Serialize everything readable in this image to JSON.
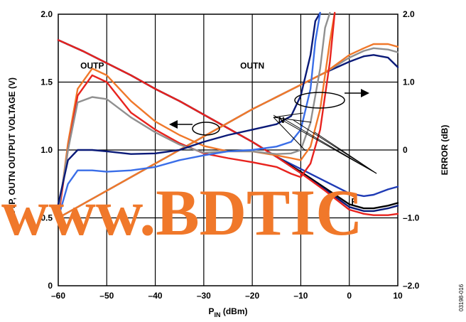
{
  "chart_data": {
    "type": "line",
    "title": "",
    "xlabel_main": "P",
    "xlabel_sub": "IN",
    "xlabel_unit": " (dBm)",
    "ylabel": "OUTP, OUTN OUTPUT VOLTAGE (V)",
    "y2label": "ERROR (dB)",
    "xlim": [
      -60,
      10
    ],
    "ylim": [
      0,
      2
    ],
    "y2lim": [
      -2,
      2
    ],
    "grid": true,
    "x_ticks": [
      -60,
      -50,
      -40,
      -30,
      -20,
      -10,
      0,
      10
    ],
    "x_tick_labels": [
      "–60",
      "–50",
      "–40",
      "–30",
      "–20",
      "–10",
      "0",
      "10"
    ],
    "y_ticks": [
      0,
      0.5,
      1.0,
      1.5,
      2.0
    ],
    "y_tick_labels": [
      "0",
      "0.5",
      "1.0",
      "1.5",
      "2.0"
    ],
    "y2_ticks": [
      -2,
      -1,
      0,
      1,
      2
    ],
    "y2_tick_labels": [
      "–2.0",
      "–1.0",
      "0",
      "1.0",
      "2.0"
    ],
    "series": [
      {
        "group": "OUTP",
        "axis": "left",
        "color": "#1f3bb5",
        "points": [
          [
            -60,
            1.81
          ],
          [
            -55,
            1.73
          ],
          [
            -50,
            1.64
          ],
          [
            -45,
            1.55
          ],
          [
            -40,
            1.45
          ],
          [
            -35,
            1.36
          ],
          [
            -30,
            1.26
          ],
          [
            -25,
            1.16
          ],
          [
            -20,
            1.06
          ],
          [
            -15,
            0.95
          ],
          [
            -10,
            0.86
          ],
          [
            -5,
            0.77
          ],
          [
            0,
            0.68
          ],
          [
            3,
            0.66
          ],
          [
            5,
            0.67
          ],
          [
            8,
            0.71
          ],
          [
            10,
            0.73
          ]
        ]
      },
      {
        "group": "OUTP",
        "axis": "left",
        "color": "#000000",
        "points": [
          [
            -60,
            1.81
          ],
          [
            -55,
            1.73
          ],
          [
            -50,
            1.64
          ],
          [
            -45,
            1.55
          ],
          [
            -40,
            1.45
          ],
          [
            -35,
            1.36
          ],
          [
            -30,
            1.26
          ],
          [
            -25,
            1.16
          ],
          [
            -20,
            1.06
          ],
          [
            -15,
            0.95
          ],
          [
            -10,
            0.84
          ],
          [
            -5,
            0.72
          ],
          [
            0,
            0.6
          ],
          [
            3,
            0.57
          ],
          [
            5,
            0.57
          ],
          [
            8,
            0.59
          ],
          [
            10,
            0.61
          ]
        ]
      },
      {
        "group": "OUTP",
        "axis": "left",
        "color": "#0a1a78",
        "points": [
          [
            -60,
            1.81
          ],
          [
            -55,
            1.73
          ],
          [
            -50,
            1.64
          ],
          [
            -45,
            1.55
          ],
          [
            -40,
            1.45
          ],
          [
            -35,
            1.36
          ],
          [
            -30,
            1.26
          ],
          [
            -25,
            1.16
          ],
          [
            -20,
            1.06
          ],
          [
            -15,
            0.95
          ],
          [
            -10,
            0.83
          ],
          [
            -5,
            0.71
          ],
          [
            0,
            0.58
          ],
          [
            3,
            0.55
          ],
          [
            5,
            0.55
          ],
          [
            8,
            0.57
          ],
          [
            10,
            0.59
          ]
        ]
      },
      {
        "group": "OUTP",
        "axis": "left",
        "color": "#e8231e",
        "points": [
          [
            -60,
            1.81
          ],
          [
            -55,
            1.73
          ],
          [
            -50,
            1.64
          ],
          [
            -45,
            1.55
          ],
          [
            -40,
            1.45
          ],
          [
            -35,
            1.36
          ],
          [
            -30,
            1.26
          ],
          [
            -25,
            1.16
          ],
          [
            -20,
            1.06
          ],
          [
            -15,
            0.95
          ],
          [
            -10,
            0.83
          ],
          [
            -5,
            0.7
          ],
          [
            0,
            0.56
          ],
          [
            3,
            0.53
          ],
          [
            5,
            0.52
          ],
          [
            8,
            0.52
          ],
          [
            10,
            0.53
          ]
        ]
      },
      {
        "group": "OUTN",
        "axis": "left",
        "color": "#0a1a78",
        "points": [
          [
            -60,
            0.5
          ],
          [
            -55,
            0.6
          ],
          [
            -50,
            0.7
          ],
          [
            -45,
            0.8
          ],
          [
            -40,
            0.9
          ],
          [
            -35,
            1.0
          ],
          [
            -30,
            1.1
          ],
          [
            -25,
            1.2
          ],
          [
            -20,
            1.3
          ],
          [
            -15,
            1.39
          ],
          [
            -10,
            1.48
          ],
          [
            -5,
            1.57
          ],
          [
            0,
            1.65
          ],
          [
            3,
            1.69
          ],
          [
            5,
            1.7
          ],
          [
            8,
            1.68
          ],
          [
            10,
            1.61
          ]
        ]
      },
      {
        "group": "OUTN",
        "axis": "left",
        "color": "#909090",
        "points": [
          [
            -60,
            0.5
          ],
          [
            -55,
            0.6
          ],
          [
            -50,
            0.7
          ],
          [
            -45,
            0.8
          ],
          [
            -40,
            0.9
          ],
          [
            -35,
            1.0
          ],
          [
            -30,
            1.1
          ],
          [
            -25,
            1.2
          ],
          [
            -20,
            1.3
          ],
          [
            -15,
            1.39
          ],
          [
            -10,
            1.48
          ],
          [
            -5,
            1.57
          ],
          [
            0,
            1.68
          ],
          [
            3,
            1.73
          ],
          [
            5,
            1.75
          ],
          [
            8,
            1.74
          ],
          [
            10,
            1.72
          ]
        ]
      },
      {
        "group": "OUTN",
        "axis": "left",
        "color": "#f0782a",
        "points": [
          [
            -60,
            0.5
          ],
          [
            -55,
            0.6
          ],
          [
            -50,
            0.7
          ],
          [
            -45,
            0.8
          ],
          [
            -40,
            0.9
          ],
          [
            -35,
            1.0
          ],
          [
            -30,
            1.1
          ],
          [
            -25,
            1.2
          ],
          [
            -20,
            1.3
          ],
          [
            -15,
            1.39
          ],
          [
            -10,
            1.48
          ],
          [
            -5,
            1.57
          ],
          [
            0,
            1.7
          ],
          [
            3,
            1.75
          ],
          [
            5,
            1.78
          ],
          [
            8,
            1.78
          ],
          [
            10,
            1.76
          ]
        ]
      },
      {
        "group": "ERROR",
        "axis": "right",
        "color": "#f0782a",
        "points": [
          [
            -60,
            -1.0
          ],
          [
            -58,
            0.1
          ],
          [
            -56,
            0.9
          ],
          [
            -53,
            1.2
          ],
          [
            -50,
            1.1
          ],
          [
            -45,
            0.72
          ],
          [
            -40,
            0.42
          ],
          [
            -35,
            0.22
          ],
          [
            -30,
            0.06
          ],
          [
            -25,
            -0.02
          ],
          [
            -20,
            -0.02
          ],
          [
            -15,
            -0.08
          ],
          [
            -12,
            -0.12
          ],
          [
            -10,
            -0.15
          ],
          [
            -8,
            0.05
          ],
          [
            -6,
            0.6
          ],
          [
            -4,
            1.6
          ],
          [
            -3,
            2.4
          ]
        ]
      },
      {
        "group": "ERROR",
        "axis": "right",
        "color": "#e8231e",
        "points": [
          [
            -60,
            -1.0
          ],
          [
            -58,
            0.0
          ],
          [
            -56,
            0.8
          ],
          [
            -53,
            1.1
          ],
          [
            -50,
            1.0
          ],
          [
            -45,
            0.55
          ],
          [
            -40,
            0.3
          ],
          [
            -35,
            0.1
          ],
          [
            -30,
            -0.05
          ],
          [
            -25,
            -0.12
          ],
          [
            -20,
            -0.18
          ],
          [
            -15,
            -0.25
          ],
          [
            -12,
            -0.35
          ],
          [
            -10,
            -0.4
          ],
          [
            -8,
            -0.2
          ],
          [
            -6,
            0.3
          ],
          [
            -4,
            1.3
          ],
          [
            -3,
            2.4
          ]
        ]
      },
      {
        "group": "ERROR",
        "axis": "right",
        "color": "#909090",
        "points": [
          [
            -60,
            -0.9
          ],
          [
            -58,
            0.0
          ],
          [
            -56,
            0.7
          ],
          [
            -53,
            0.78
          ],
          [
            -50,
            0.75
          ],
          [
            -45,
            0.48
          ],
          [
            -40,
            0.26
          ],
          [
            -35,
            0.08
          ],
          [
            -30,
            -0.04
          ],
          [
            -25,
            -0.02
          ],
          [
            -20,
            -0.02
          ],
          [
            -15,
            -0.06
          ],
          [
            -12,
            -0.05
          ],
          [
            -10,
            0.0
          ],
          [
            -8,
            0.4
          ],
          [
            -6,
            1.2
          ],
          [
            -5,
            1.8
          ],
          [
            -4,
            2.4
          ]
        ]
      },
      {
        "group": "ERROR",
        "axis": "right",
        "color": "#0a1a78",
        "points": [
          [
            -60,
            -0.8
          ],
          [
            -58,
            -0.15
          ],
          [
            -56,
            0.0
          ],
          [
            -53,
            0.0
          ],
          [
            -50,
            -0.02
          ],
          [
            -45,
            -0.06
          ],
          [
            -40,
            -0.05
          ],
          [
            -35,
            0.0
          ],
          [
            -30,
            0.12
          ],
          [
            -25,
            0.22
          ],
          [
            -20,
            0.3
          ],
          [
            -15,
            0.38
          ],
          [
            -12,
            0.5
          ],
          [
            -10,
            0.8
          ],
          [
            -8,
            1.4
          ],
          [
            -7,
            1.9
          ],
          [
            -6,
            2.4
          ]
        ]
      },
      {
        "group": "ERROR",
        "axis": "right",
        "color": "#3a6ee8",
        "points": [
          [
            -60,
            -1.0
          ],
          [
            -58,
            -0.5
          ],
          [
            -56,
            -0.3
          ],
          [
            -53,
            -0.3
          ],
          [
            -50,
            -0.32
          ],
          [
            -45,
            -0.3
          ],
          [
            -40,
            -0.25
          ],
          [
            -35,
            -0.15
          ],
          [
            -30,
            -0.08
          ],
          [
            -25,
            -0.02
          ],
          [
            -20,
            0.0
          ],
          [
            -15,
            0.05
          ],
          [
            -12,
            0.12
          ],
          [
            -10,
            0.3
          ],
          [
            -8,
            0.9
          ],
          [
            -7,
            1.6
          ],
          [
            -6,
            2.4
          ]
        ]
      }
    ],
    "annotations": [
      {
        "text": "OUTP",
        "x": -53,
        "y": 1.6
      },
      {
        "text": "OUTN",
        "x": -20,
        "y": 1.6
      },
      {
        "text": "N",
        "x": -14,
        "y": 0.4
      },
      {
        "text": "P",
        "x": 1,
        "y": -0.8
      }
    ]
  },
  "figure_id": "03198-016",
  "watermark": "www.BDTIC"
}
